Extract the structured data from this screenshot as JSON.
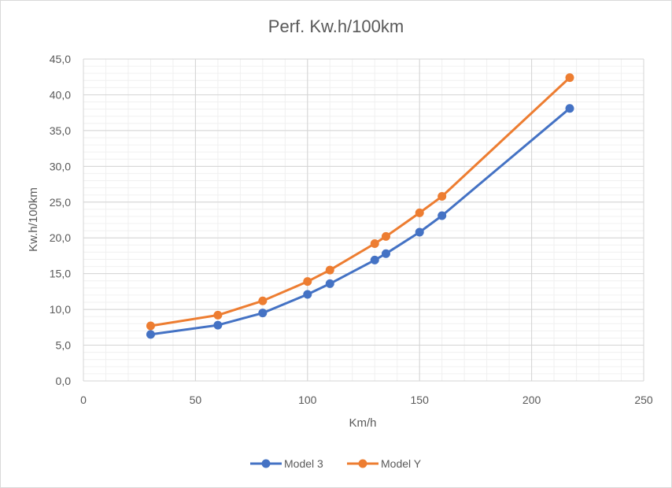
{
  "chart_data": {
    "type": "line",
    "title": "Perf. Kw.h/100km",
    "xlabel": "Km/h",
    "ylabel": "Kw.h/100km",
    "xlim": [
      0,
      250
    ],
    "ylim": [
      0,
      45
    ],
    "x_ticks": [
      0,
      50,
      100,
      150,
      200,
      250
    ],
    "x_tick_labels": [
      "0",
      "50",
      "100",
      "150",
      "200",
      "250"
    ],
    "y_ticks": [
      0,
      5,
      10,
      15,
      20,
      25,
      30,
      35,
      40,
      45
    ],
    "y_tick_labels": [
      "0,0",
      "5,0",
      "10,0",
      "15,0",
      "20,0",
      "25,0",
      "30,0",
      "35,0",
      "40,0",
      "45,0"
    ],
    "grid": true,
    "legend_position": "bottom",
    "series": [
      {
        "name": "Model 3",
        "color": "#4472c4",
        "x": [
          30,
          60,
          80,
          100,
          110,
          130,
          135,
          150,
          160,
          217
        ],
        "y": [
          6.5,
          7.8,
          9.5,
          12.1,
          13.6,
          16.9,
          17.8,
          20.8,
          23.1,
          38.1
        ]
      },
      {
        "name": "Model Y",
        "color": "#ed7d31",
        "x": [
          30,
          60,
          80,
          100,
          110,
          130,
          135,
          150,
          160,
          217
        ],
        "y": [
          7.7,
          9.2,
          11.2,
          13.9,
          15.5,
          19.2,
          20.2,
          23.5,
          25.8,
          42.4
        ]
      }
    ]
  }
}
